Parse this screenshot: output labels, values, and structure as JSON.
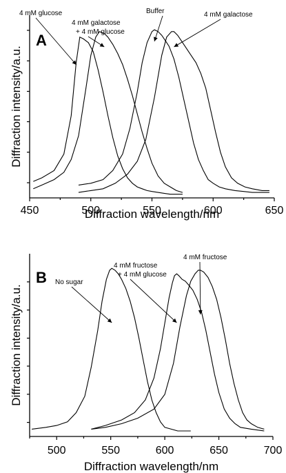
{
  "chart_data": [
    {
      "type": "line",
      "panel_label": "A",
      "xlabel": "Diffraction wavelength/nm",
      "ylabel": "Diffraction intensity/a.u.",
      "xlim": [
        450,
        650
      ],
      "ylim": [
        0,
        1
      ],
      "xticks": [
        450,
        500,
        550,
        600,
        650
      ],
      "yticks": [
        0.083,
        0.25,
        0.417,
        0.583,
        0.75,
        0.917
      ],
      "y_tick_labels": false,
      "grid": false,
      "series": [
        {
          "name": "4 mM glucose",
          "peak": 491,
          "x": [
            453,
            460,
            470,
            478,
            484,
            488,
            491,
            494,
            498,
            502,
            506,
            510,
            514,
            518,
            522,
            526,
            530,
            534,
            538,
            542,
            546,
            550,
            555,
            560,
            565,
            570,
            575
          ],
          "y": [
            0.09,
            0.11,
            0.15,
            0.24,
            0.45,
            0.74,
            0.88,
            0.87,
            0.85,
            0.8,
            0.7,
            0.58,
            0.45,
            0.33,
            0.23,
            0.16,
            0.11,
            0.08,
            0.06,
            0.05,
            0.04,
            0.035,
            0.03,
            0.025,
            0.02,
            0.02,
            0.02
          ]
        },
        {
          "name": "4 mM galactose + 4 mM glucose",
          "peak": 511,
          "x": [
            453,
            460,
            470,
            478,
            484,
            490,
            496,
            500,
            504,
            507,
            511,
            514,
            518,
            522,
            526,
            530,
            534,
            538,
            542,
            546,
            550,
            555,
            560,
            565,
            570,
            575
          ],
          "y": [
            0.05,
            0.07,
            0.1,
            0.14,
            0.21,
            0.34,
            0.6,
            0.78,
            0.88,
            0.91,
            0.9,
            0.88,
            0.84,
            0.79,
            0.73,
            0.65,
            0.56,
            0.46,
            0.36,
            0.27,
            0.19,
            0.12,
            0.08,
            0.06,
            0.04,
            0.03
          ]
        },
        {
          "name": "Buffer",
          "peak": 552,
          "x": [
            490,
            500,
            510,
            518,
            526,
            532,
            538,
            542,
            546,
            550,
            552,
            555,
            558,
            561,
            564,
            568,
            572,
            576,
            580,
            584,
            588,
            592,
            596,
            600,
            605,
            610,
            618,
            625,
            632,
            640,
            646
          ],
          "y": [
            0.07,
            0.08,
            0.1,
            0.15,
            0.24,
            0.38,
            0.58,
            0.74,
            0.85,
            0.91,
            0.92,
            0.91,
            0.89,
            0.86,
            0.83,
            0.76,
            0.66,
            0.54,
            0.42,
            0.3,
            0.21,
            0.15,
            0.1,
            0.08,
            0.06,
            0.05,
            0.04,
            0.035,
            0.03,
            0.03,
            0.03
          ]
        },
        {
          "name": "4 mM galactose",
          "peak": 568,
          "x": [
            490,
            500,
            510,
            520,
            530,
            538,
            545,
            552,
            558,
            562,
            566,
            568,
            571,
            574,
            578,
            582,
            586,
            590,
            594,
            598,
            602,
            606,
            610,
            615,
            620,
            626,
            632,
            640,
            646
          ],
          "y": [
            0.03,
            0.04,
            0.05,
            0.08,
            0.13,
            0.2,
            0.32,
            0.55,
            0.78,
            0.88,
            0.91,
            0.91,
            0.89,
            0.86,
            0.82,
            0.78,
            0.74,
            0.68,
            0.6,
            0.48,
            0.36,
            0.25,
            0.17,
            0.11,
            0.08,
            0.06,
            0.05,
            0.04,
            0.04
          ]
        }
      ],
      "annotations": [
        {
          "text": [
            "4 mM glucose"
          ],
          "target": "4 mM glucose"
        },
        {
          "text": [
            "4 mM galactose",
            "+ 4 mM glucose"
          ],
          "target": "4 mM galactose + 4 mM glucose"
        },
        {
          "text": [
            "Buffer"
          ],
          "target": "Buffer"
        },
        {
          "text": [
            "4 mM galactose"
          ],
          "target": "4 mM galactose"
        }
      ]
    },
    {
      "type": "line",
      "panel_label": "B",
      "xlabel": "Diffraction wavelength/nm",
      "ylabel": "Diffraction intensity/a.u.",
      "xlim": [
        475,
        700
      ],
      "ylim": [
        0,
        1
      ],
      "xticks": [
        500,
        550,
        600,
        650,
        700
      ],
      "yticks": [
        0.077,
        0.231,
        0.385,
        0.538,
        0.692,
        0.846
      ],
      "y_tick_labels": false,
      "grid": false,
      "series": [
        {
          "name": "No sugar",
          "peak": 551,
          "x": [
            477,
            490,
            500,
            510,
            518,
            526,
            532,
            538,
            542,
            546,
            549,
            551,
            554,
            557,
            560,
            564,
            568,
            572,
            576,
            580,
            584,
            588,
            592,
            596,
            600,
            606,
            612,
            618,
            624
          ],
          "y": [
            0.04,
            0.05,
            0.06,
            0.08,
            0.13,
            0.22,
            0.38,
            0.58,
            0.74,
            0.86,
            0.91,
            0.92,
            0.91,
            0.89,
            0.86,
            0.81,
            0.74,
            0.65,
            0.54,
            0.42,
            0.3,
            0.2,
            0.13,
            0.08,
            0.05,
            0.04,
            0.03,
            0.03,
            0.03
          ]
        },
        {
          "name": "4 mM fructose + 4 mM glucose",
          "peak": 611,
          "x": [
            532,
            545,
            560,
            572,
            582,
            590,
            596,
            600,
            604,
            607,
            609,
            611,
            613,
            616,
            619,
            622,
            626,
            630,
            634,
            638,
            642,
            646,
            650,
            655,
            660,
            665,
            670,
            680,
            692
          ],
          "y": [
            0.04,
            0.06,
            0.09,
            0.13,
            0.2,
            0.32,
            0.48,
            0.62,
            0.76,
            0.84,
            0.88,
            0.89,
            0.88,
            0.86,
            0.85,
            0.83,
            0.8,
            0.75,
            0.68,
            0.58,
            0.46,
            0.34,
            0.24,
            0.15,
            0.1,
            0.07,
            0.05,
            0.04,
            0.03
          ]
        },
        {
          "name": "4 mM fructose",
          "peak": 633,
          "x": [
            532,
            545,
            560,
            575,
            590,
            600,
            608,
            614,
            620,
            624,
            628,
            631,
            633,
            636,
            640,
            644,
            648,
            652,
            656,
            660,
            664,
            668,
            672,
            676,
            680,
            686,
            692
          ],
          "y": [
            0.04,
            0.05,
            0.07,
            0.1,
            0.15,
            0.23,
            0.4,
            0.6,
            0.77,
            0.85,
            0.89,
            0.91,
            0.91,
            0.9,
            0.87,
            0.82,
            0.75,
            0.65,
            0.53,
            0.4,
            0.29,
            0.2,
            0.13,
            0.09,
            0.07,
            0.05,
            0.04
          ]
        }
      ],
      "annotations": [
        {
          "text": [
            "No sugar"
          ],
          "target": "No sugar"
        },
        {
          "text": [
            "4 mM fructose",
            "+ 4 mM glucose"
          ],
          "target": "4 mM fructose + 4 mM glucose"
        },
        {
          "text": [
            "4 mM fructose"
          ],
          "target": "4 mM fructose"
        }
      ]
    }
  ]
}
